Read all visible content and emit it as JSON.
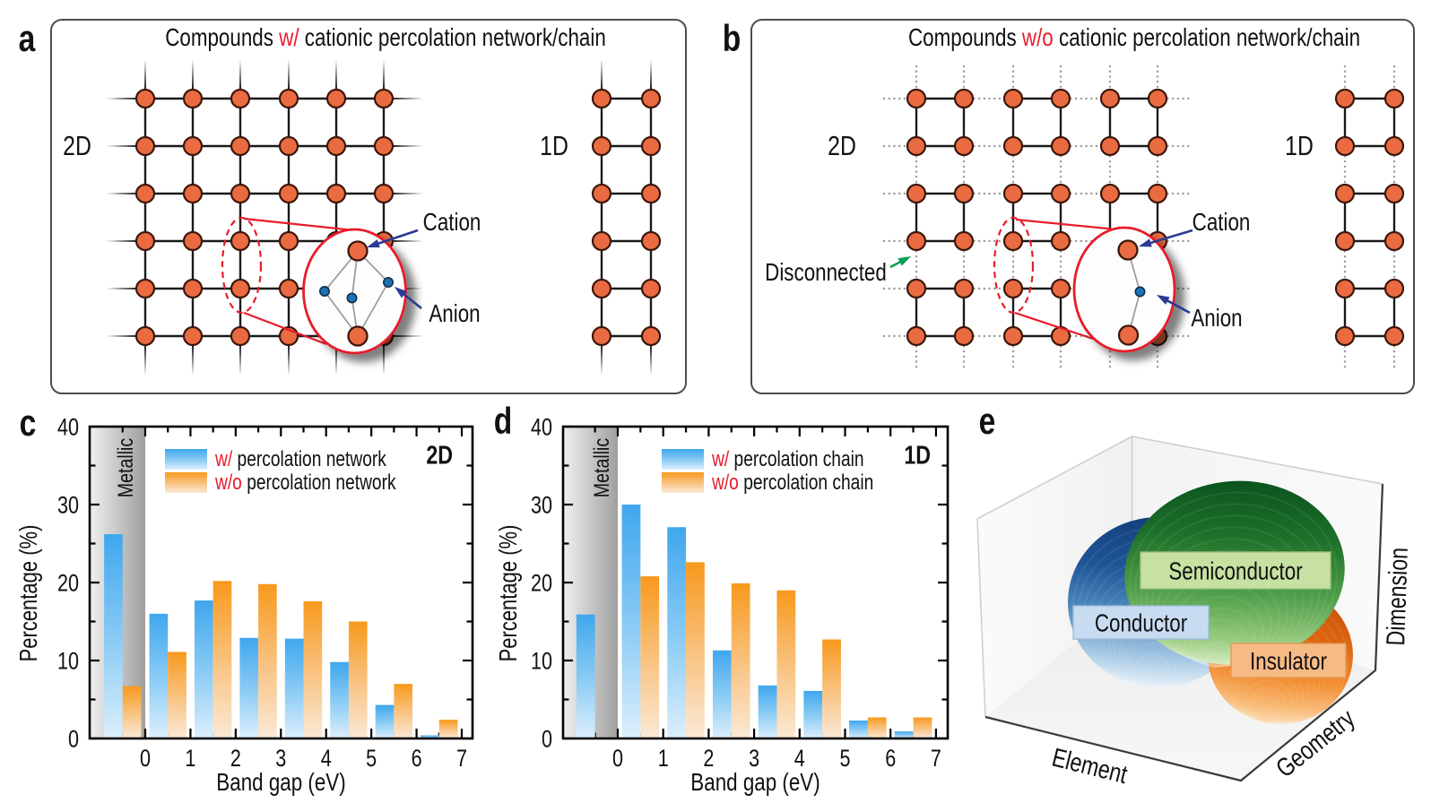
{
  "figure": {
    "background": "#ffffff"
  },
  "panel_a": {
    "label": "a",
    "title": {
      "pre": "Compounds ",
      "em": "w/",
      "post": " cationic percolation network/chain"
    },
    "lattice2d_label": "2D",
    "lattice1d_label": "1D",
    "cation_label": "Cation",
    "anion_label": "Anion"
  },
  "panel_b": {
    "label": "b",
    "title": {
      "pre": "Compounds ",
      "em": "w/o",
      "post": " cationic percolation network/chain"
    },
    "lattice2d_label": "2D",
    "lattice1d_label": "1D",
    "disconnected_label": "Disconnected",
    "cation_label": "Cation",
    "anion_label": "Anion"
  },
  "chart_data": [
    {
      "panel": "c",
      "type": "bar",
      "xlabel": "Band gap (eV)",
      "ylabel": "Percentage (%)",
      "ylim": [
        0,
        40
      ],
      "yticks": [
        0,
        10,
        20,
        30,
        40
      ],
      "xticks": [
        0,
        1,
        2,
        3,
        4,
        5,
        6,
        7
      ],
      "metallic_label": "Metallic",
      "corner_label": "2D",
      "categories": [
        "Metallic",
        "0-1",
        "1-2",
        "2-3",
        "3-4",
        "4-5",
        "5-6",
        "6-7"
      ],
      "bin_centers": [
        -0.5,
        0.5,
        1.5,
        2.5,
        3.5,
        4.5,
        5.5,
        6.5
      ],
      "series": [
        {
          "name_em": "w/",
          "name_rest": " percolation network",
          "color": "blue",
          "values": [
            26.2,
            16.0,
            17.7,
            12.9,
            12.8,
            9.8,
            4.3,
            0.4
          ]
        },
        {
          "name_em": "w/o",
          "name_rest": " percolation network",
          "color": "orange",
          "values": [
            6.7,
            11.1,
            20.2,
            19.8,
            17.6,
            15.0,
            7.0,
            2.4
          ]
        }
      ]
    },
    {
      "panel": "d",
      "type": "bar",
      "xlabel": "Band gap (eV)",
      "ylabel": "Percentage (%)",
      "ylim": [
        0,
        40
      ],
      "yticks": [
        0,
        10,
        20,
        30,
        40
      ],
      "xticks": [
        0,
        1,
        2,
        3,
        4,
        5,
        6,
        7
      ],
      "metallic_label": "Metallic",
      "corner_label": "1D",
      "categories": [
        "Metallic",
        "0-1",
        "1-2",
        "2-3",
        "3-4",
        "4-5",
        "5-6",
        "6-7"
      ],
      "bin_centers": [
        -0.5,
        0.5,
        1.5,
        2.5,
        3.5,
        4.5,
        5.5,
        6.5
      ],
      "series": [
        {
          "name_em": "w/",
          "name_rest": " percolation chain",
          "color": "blue",
          "values": [
            15.9,
            30.0,
            27.1,
            11.3,
            6.8,
            6.1,
            2.3,
            0.9
          ]
        },
        {
          "name_em": "w/o",
          "name_rest": " percolation chain",
          "color": "orange",
          "values": [
            0,
            20.8,
            22.6,
            19.9,
            19.0,
            12.7,
            2.7,
            2.7
          ]
        }
      ]
    }
  ],
  "panel_e": {
    "label": "e",
    "axis_x": "Element",
    "axis_y": "Geometry",
    "axis_z": "Dimension",
    "regions": [
      {
        "name": "Conductor",
        "label_bg": "#c7dcf1",
        "label_border": "#9dbcdb",
        "stops": [
          "#143f7c",
          "#1d5596",
          "#4a86bb",
          "#9cc2e0",
          "#e2eef8"
        ]
      },
      {
        "name": "Semiconductor",
        "label_bg": "#c6e1a1",
        "label_border": "#9cc374",
        "stops": [
          "#0b541e",
          "#1d7029",
          "#4d9d49",
          "#96ca7c",
          "#daeec6"
        ]
      },
      {
        "name": "Insulator",
        "label_bg": "#f6ba85",
        "label_border": "#e09a52",
        "stops": [
          "#c84d07",
          "#dd6410",
          "#f28b2d",
          "#f9bc77",
          "#fcdfba"
        ]
      }
    ]
  },
  "colors": {
    "node_fill": "#ea6b41",
    "node_stroke": "#3c170b",
    "bond": "#1a1a1a",
    "dotted": "#9a9a9a",
    "red": "#e81c2b",
    "navy": "#2b3a94",
    "green": "#00a050",
    "anion_fill": "#1b72b7",
    "gray_line": "#9a9a9a",
    "blue_bar_top": "#3fa7ee",
    "blue_bar_bottom": "#d9eefb",
    "orange_bar_top": "#f8991d",
    "orange_bar_bottom": "#fae5cb",
    "metal_left": "#efefef",
    "metal_right": "#a0a0a0",
    "text": "#111111"
  }
}
